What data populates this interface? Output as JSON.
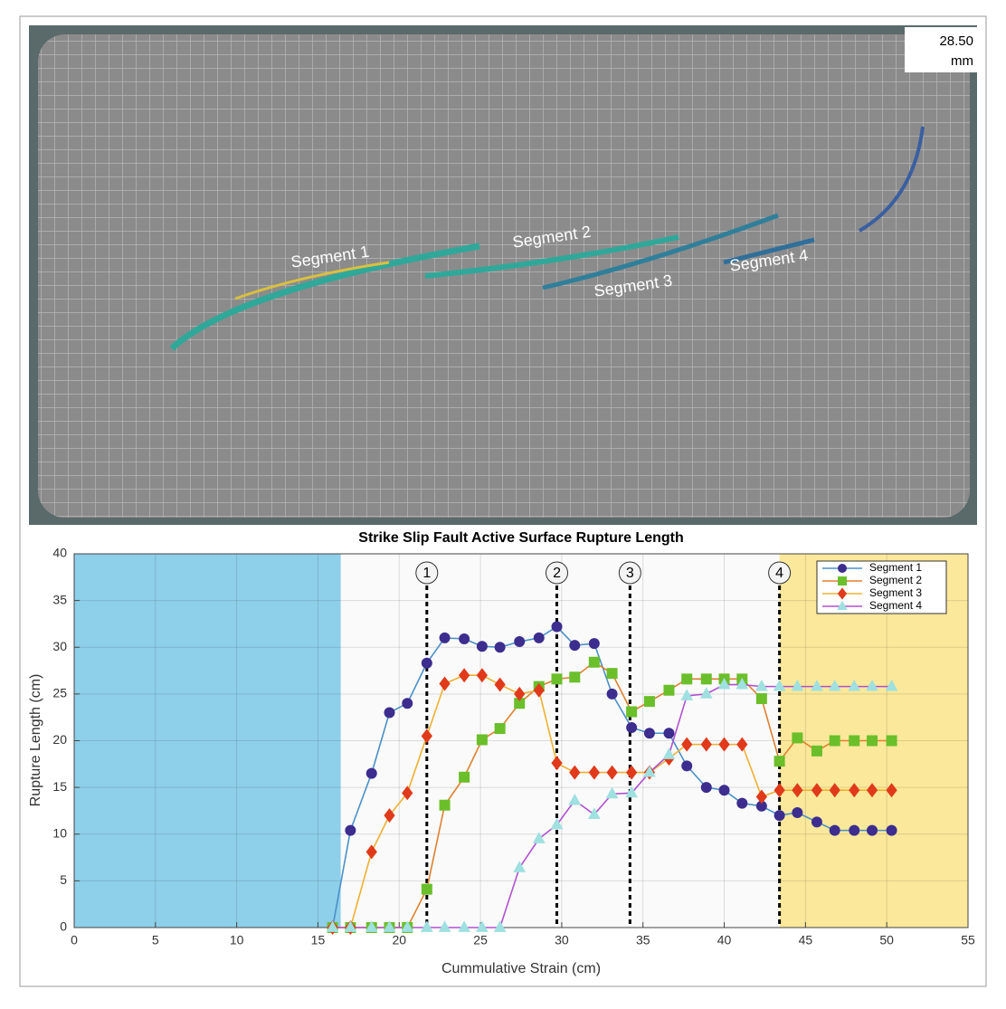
{
  "image": {
    "labels": [
      "Segment 1",
      "Segment 2",
      "Segment 3",
      "Segment 4"
    ],
    "scale_value": "28.50",
    "scale_unit": "mm"
  },
  "chart_data": {
    "type": "line",
    "title": "Strike Slip Fault Active Surface Rupture Length",
    "xlabel": "Cummulative Strain (cm)",
    "ylabel": "Rupture Length (cm)",
    "x": [
      15.9,
      17.0,
      18.3,
      19.4,
      20.5,
      21.7,
      22.8,
      24.0,
      25.1,
      26.2,
      27.4,
      28.6,
      29.7,
      30.8,
      32.0,
      33.1,
      34.3,
      35.4,
      36.6,
      37.7,
      38.9,
      40.0,
      41.1,
      42.3,
      43.4,
      44.5,
      45.7,
      46.8,
      48.0,
      49.1,
      50.3
    ],
    "series": [
      {
        "name": "Segment 1",
        "color": "#4a90c8",
        "marker_color": "#3d2d8f",
        "marker": "circle",
        "values": [
          0,
          10.4,
          16.5,
          23,
          24,
          28.3,
          31,
          30.9,
          30.1,
          30,
          30.6,
          31,
          32.2,
          30.2,
          30.4,
          25,
          21.4,
          20.8,
          20.8,
          17.3,
          15,
          14.7,
          13.3,
          13,
          12,
          12.3,
          11.3,
          10.4,
          10.4,
          10.4,
          10.4
        ]
      },
      {
        "name": "Segment 2",
        "color": "#e08030",
        "marker_color": "#6abf2a",
        "marker": "square",
        "values": [
          0,
          0,
          0,
          0,
          0,
          4.1,
          13.1,
          16.1,
          20.1,
          21.3,
          24,
          25.8,
          26.6,
          26.8,
          28.4,
          27.2,
          23.1,
          24.2,
          25.4,
          26.6,
          26.6,
          26.6,
          26.6,
          24.5,
          17.8,
          20.3,
          18.9,
          20,
          20,
          20,
          20
        ]
      },
      {
        "name": "Segment 3",
        "color": "#f0b030",
        "marker_color": "#e03a1a",
        "marker": "diamond",
        "values": [
          0,
          0,
          8.1,
          12,
          14.4,
          20.5,
          26.1,
          27,
          27,
          26,
          25,
          25.4,
          17.6,
          16.6,
          16.6,
          16.6,
          16.6,
          16.6,
          18.1,
          19.6,
          19.6,
          19.6,
          19.6,
          14,
          14.7,
          14.7,
          14.7,
          14.7,
          14.7,
          14.7,
          14.7
        ]
      },
      {
        "name": "Segment 4",
        "color": "#b050d0",
        "marker_color": "#9fe0e0",
        "marker": "triangle",
        "values": [
          0,
          0,
          0,
          0,
          0,
          0,
          0,
          0,
          0,
          0,
          6.4,
          9.5,
          11,
          13.6,
          12.1,
          14.3,
          14.4,
          16.6,
          18.5,
          24.8,
          25,
          26,
          26,
          25.8,
          25.8,
          25.8,
          25.8,
          25.8,
          25.8,
          25.8,
          25.8
        ]
      }
    ],
    "xlim": [
      0,
      55
    ],
    "ylim": [
      0,
      40
    ],
    "xticks": [
      0,
      5,
      10,
      15,
      20,
      25,
      30,
      35,
      40,
      45,
      50,
      55
    ],
    "yticks": [
      0,
      5,
      10,
      15,
      20,
      25,
      30,
      35,
      40
    ],
    "grid": true,
    "legend": "upper right",
    "spans": [
      {
        "from": 0,
        "to": 16.4,
        "color": "#8ecfea"
      },
      {
        "from": 43.4,
        "to": 55,
        "color": "#fbe89a"
      }
    ],
    "events": [
      {
        "x": 21.7,
        "label": "1"
      },
      {
        "x": 29.7,
        "label": "2"
      },
      {
        "x": 34.2,
        "label": "3"
      },
      {
        "x": 43.4,
        "label": "4"
      }
    ]
  }
}
